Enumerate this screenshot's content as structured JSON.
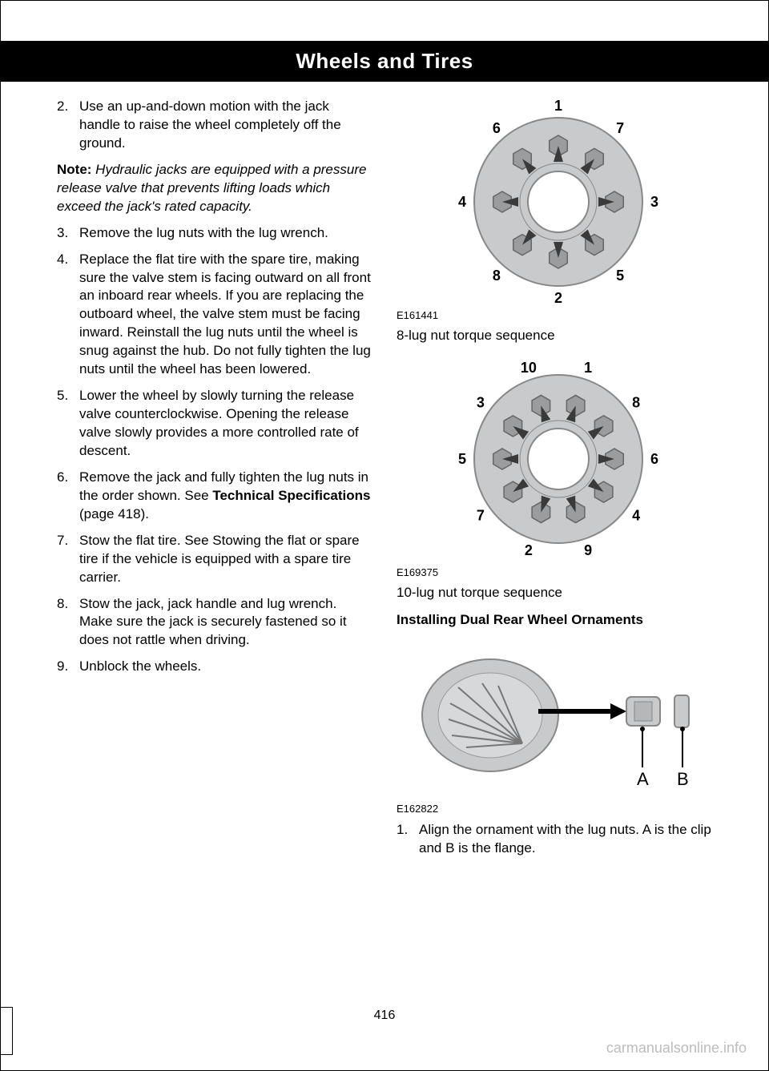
{
  "header": {
    "title": "Wheels and Tires"
  },
  "leftColumn": {
    "items": [
      {
        "num": "2.",
        "text": "Use an up-and-down motion with the jack handle to raise the wheel completely off the ground."
      }
    ],
    "note": {
      "label": "Note:",
      "text": " Hydraulic jacks are equipped with a pressure release valve that prevents lifting loads which exceed the jack's rated capacity."
    },
    "items2": [
      {
        "num": "3.",
        "text": "Remove the lug nuts with the lug wrench."
      },
      {
        "num": "4.",
        "text": "Replace the flat tire with the spare tire, making sure the valve stem is facing outward on all front an inboard rear wheels. If you are replacing the outboard wheel, the valve stem must be facing inward. Reinstall the lug nuts until the wheel is snug against the hub. Do not fully tighten the lug nuts until the wheel has been lowered."
      },
      {
        "num": "5.",
        "text": "Lower the wheel by slowly turning the release valve counterclockwise. Opening the release valve slowly provides a more controlled rate of descent."
      },
      {
        "num": "6.",
        "pre": "Remove the jack and fully tighten the lug nuts in the order shown. See ",
        "bold": "Technical Specifications",
        "post": " (page 418)."
      },
      {
        "num": "7.",
        "text": "Stow the flat tire. See Stowing the flat or spare tire if the vehicle is equipped with a spare tire carrier."
      },
      {
        "num": "8.",
        "text": "Stow the jack, jack handle and lug wrench. Make sure the jack is securely fastened so it does not rattle when driving."
      },
      {
        "num": "9.",
        "text": "Unblock the wheels."
      }
    ]
  },
  "rightColumn": {
    "diagram8": {
      "code": "E161441",
      "caption": "8-lug nut torque sequence",
      "hub_fill": "#c8cacc",
      "hub_stroke": "#888888",
      "nut_fill": "#9a9c9e",
      "labels": [
        "1",
        "7",
        "3",
        "5",
        "2",
        "8",
        "4",
        "6"
      ],
      "angles_deg": [
        270,
        310,
        0,
        50,
        90,
        130,
        180,
        230
      ]
    },
    "diagram10": {
      "code": "E169375",
      "caption": "10-lug nut torque sequence",
      "hub_fill": "#c8cacc",
      "hub_stroke": "#888888",
      "nut_fill": "#9a9c9e",
      "labels": [
        "10",
        "1",
        "8",
        "6",
        "4",
        "9",
        "2",
        "7",
        "5",
        "3"
      ],
      "angles_deg": [
        252,
        288,
        324,
        0,
        36,
        72,
        108,
        144,
        180,
        216
      ]
    },
    "section_heading": "Installing Dual Rear Wheel Ornaments",
    "diagram_ornament": {
      "code": "E162822",
      "label_a": "A",
      "label_b": "B"
    },
    "ornament_step": {
      "num": "1.",
      "text": "Align the ornament with the lug nuts. A is the clip and B is the flange."
    }
  },
  "pageNumber": "416",
  "watermark": "carmanualsonline.info"
}
